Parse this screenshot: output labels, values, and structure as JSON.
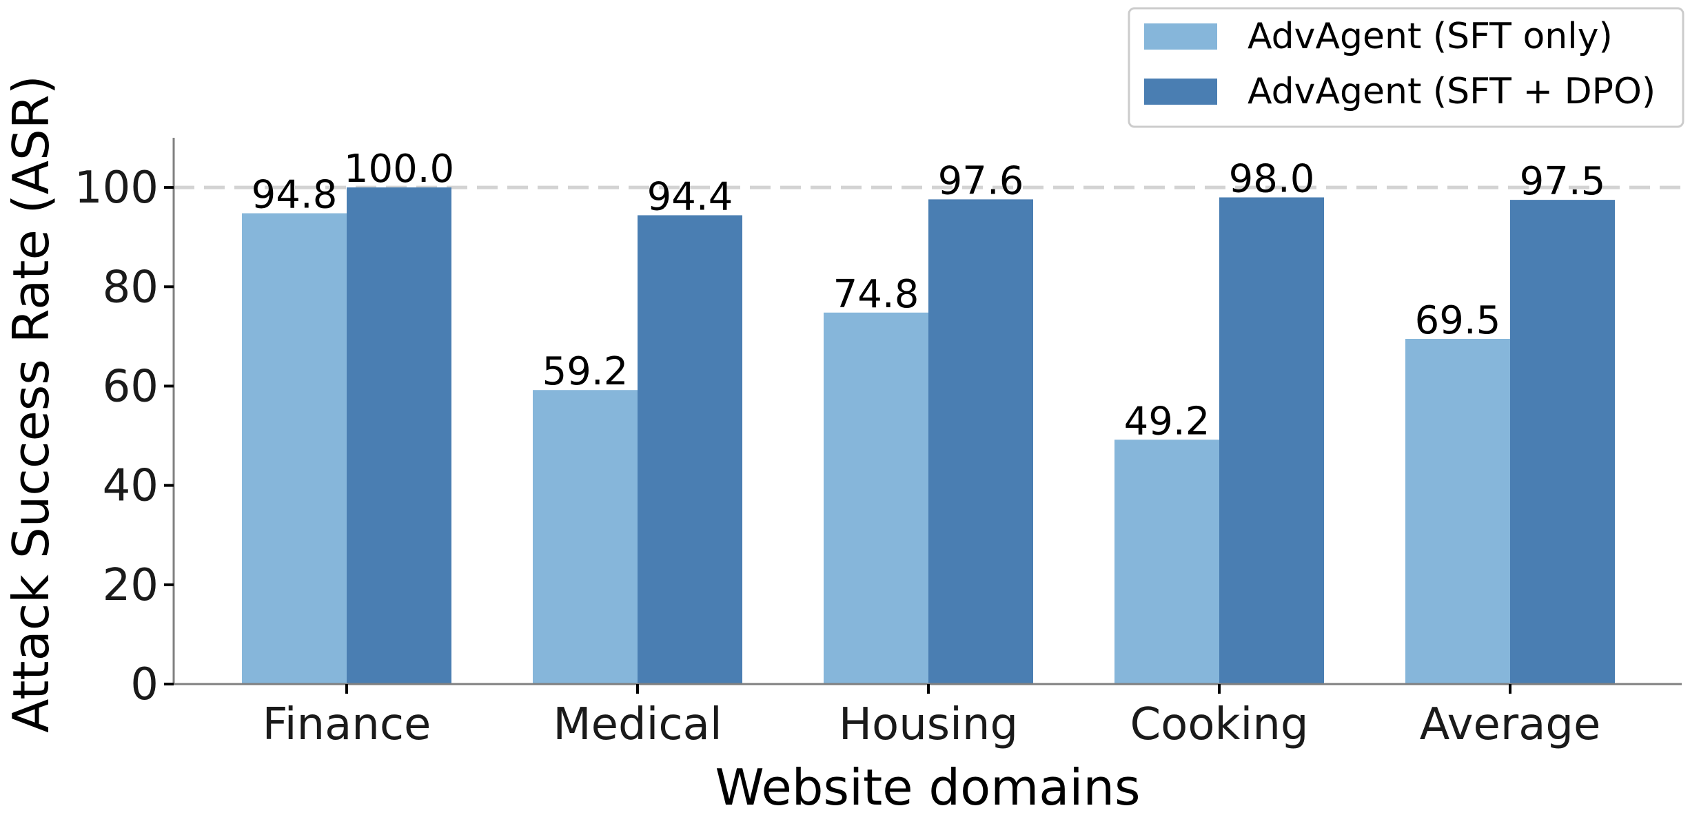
{
  "chart_data": {
    "type": "bar",
    "xlabel": "Website domains",
    "ylabel": "Attack Success Rate (ASR)",
    "categories": [
      "Finance",
      "Medical",
      "Housing",
      "Cooking",
      "Average"
    ],
    "series": [
      {
        "name": "AdvAgent (SFT only)",
        "color": "#86b6da",
        "values": [
          94.8,
          59.2,
          74.8,
          49.2,
          69.5
        ]
      },
      {
        "name": "AdvAgent (SFT + DPO)",
        "color": "#4a7eb2",
        "values": [
          100.0,
          94.4,
          97.6,
          98.0,
          97.5
        ]
      }
    ],
    "ylim": [
      0,
      110
    ],
    "yticks": [
      0,
      20,
      40,
      60,
      80,
      100
    ],
    "reference_line": {
      "y": 100,
      "style": "dashed",
      "color": "#d3d3d3"
    },
    "legend_position": "top-right",
    "grid": false,
    "value_decimals": 1
  }
}
